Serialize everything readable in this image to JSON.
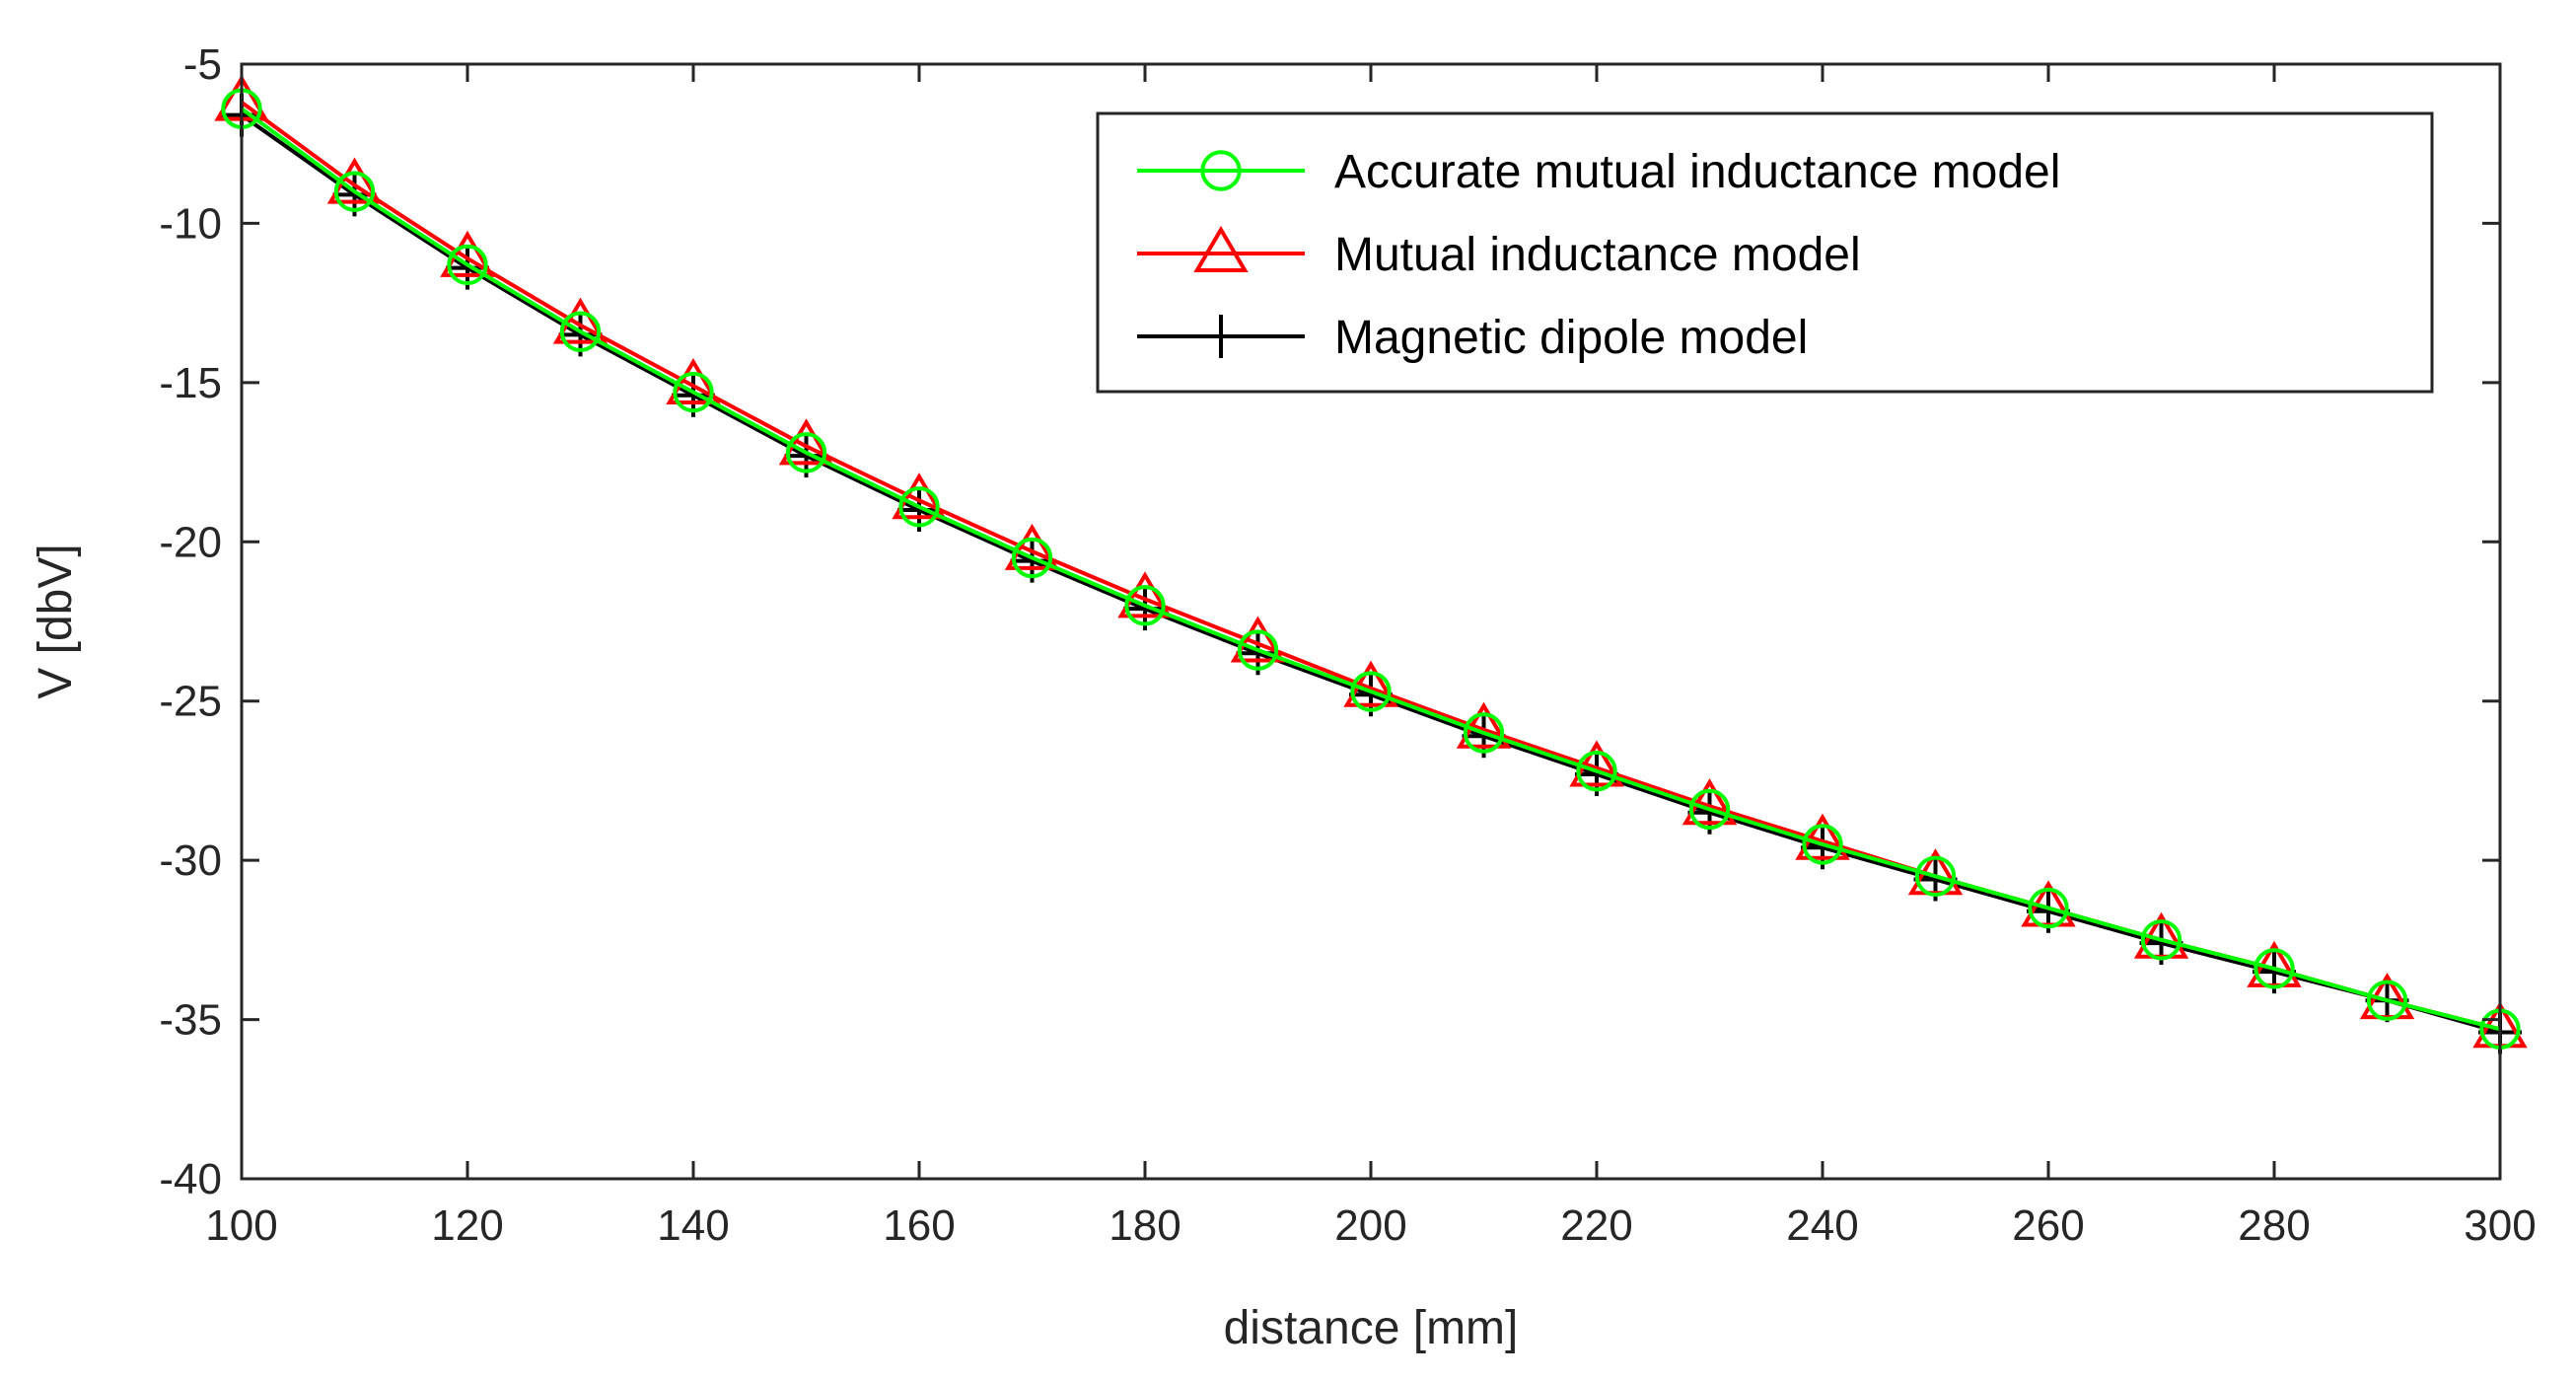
{
  "chart_data": {
    "type": "line",
    "title": "",
    "xlabel": "distance [mm]",
    "ylabel": "V [dbV]",
    "xlim": [
      100,
      300
    ],
    "ylim": [
      -40,
      -5
    ],
    "xticks": [
      100,
      120,
      140,
      160,
      180,
      200,
      220,
      240,
      260,
      280,
      300
    ],
    "yticks": [
      -40,
      -35,
      -30,
      -25,
      -20,
      -15,
      -10,
      -5
    ],
    "grid": false,
    "legend_position": "top-right",
    "x": [
      100,
      110,
      120,
      130,
      140,
      150,
      160,
      170,
      180,
      190,
      200,
      210,
      220,
      230,
      240,
      250,
      260,
      270,
      280,
      290,
      300
    ],
    "series": [
      {
        "name": "Accurate mutual inductance model",
        "color": "#00ff00",
        "marker": "circle",
        "values": [
          -6.4,
          -9.0,
          -11.3,
          -13.4,
          -15.3,
          -17.2,
          -18.9,
          -20.5,
          -22.0,
          -23.4,
          -24.7,
          -26.0,
          -27.2,
          -28.4,
          -29.5,
          -30.5,
          -31.5,
          -32.5,
          -33.4,
          -34.4,
          -35.3
        ]
      },
      {
        "name": "Mutual inductance model",
        "color": "#ff0000",
        "marker": "triangle",
        "values": [
          -6.2,
          -8.8,
          -11.1,
          -13.2,
          -15.1,
          -17.0,
          -18.7,
          -20.3,
          -21.8,
          -23.2,
          -24.6,
          -25.9,
          -27.1,
          -28.3,
          -29.4,
          -30.5,
          -31.5,
          -32.5,
          -33.4,
          -34.4,
          -35.3
        ]
      },
      {
        "name": "Magnetic dipole model",
        "color": "#000000",
        "marker": "plus",
        "values": [
          -6.6,
          -9.1,
          -11.4,
          -13.5,
          -15.4,
          -17.3,
          -19.0,
          -20.6,
          -22.1,
          -23.5,
          -24.8,
          -26.1,
          -27.3,
          -28.5,
          -29.6,
          -30.6,
          -31.6,
          -32.6,
          -33.5,
          -34.4,
          -35.4
        ]
      }
    ]
  }
}
